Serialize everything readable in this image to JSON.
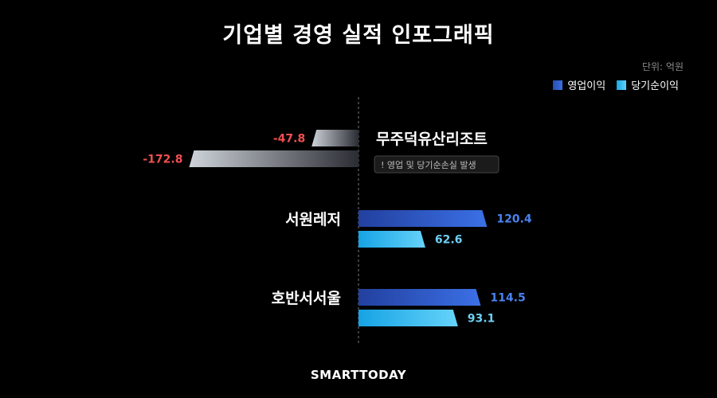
{
  "chart_data": {
    "type": "bar",
    "title": "기업별 경영 실적 인포그래픽",
    "unit_label": "단위: 억원",
    "legend": [
      {
        "name": "영업이익",
        "color": "#3b6fe0"
      },
      {
        "name": "당기순이익",
        "color": "#3cc0f0"
      }
    ],
    "categories": [
      "무주덕유산리조트",
      "서원레저",
      "호반서서울"
    ],
    "series": [
      {
        "name": "영업이익",
        "values": [
          -47.8,
          120.4,
          114.5
        ]
      },
      {
        "name": "당기순이익",
        "values": [
          -172.8,
          62.6,
          93.1
        ]
      }
    ],
    "labels": [
      [
        "-47.8",
        "-172.8"
      ],
      [
        "120.4",
        "62.6"
      ],
      [
        "114.5",
        "93.1"
      ]
    ],
    "annotations": [
      {
        "category": "무주덕유산리조트",
        "text": "! 영업 및 당기순손실 발생"
      }
    ],
    "colors": {
      "negative_label": "#f05050",
      "op_label": "#4a82f0",
      "net_label": "#6fd0f5"
    }
  },
  "brand": "SMARTTODAY"
}
